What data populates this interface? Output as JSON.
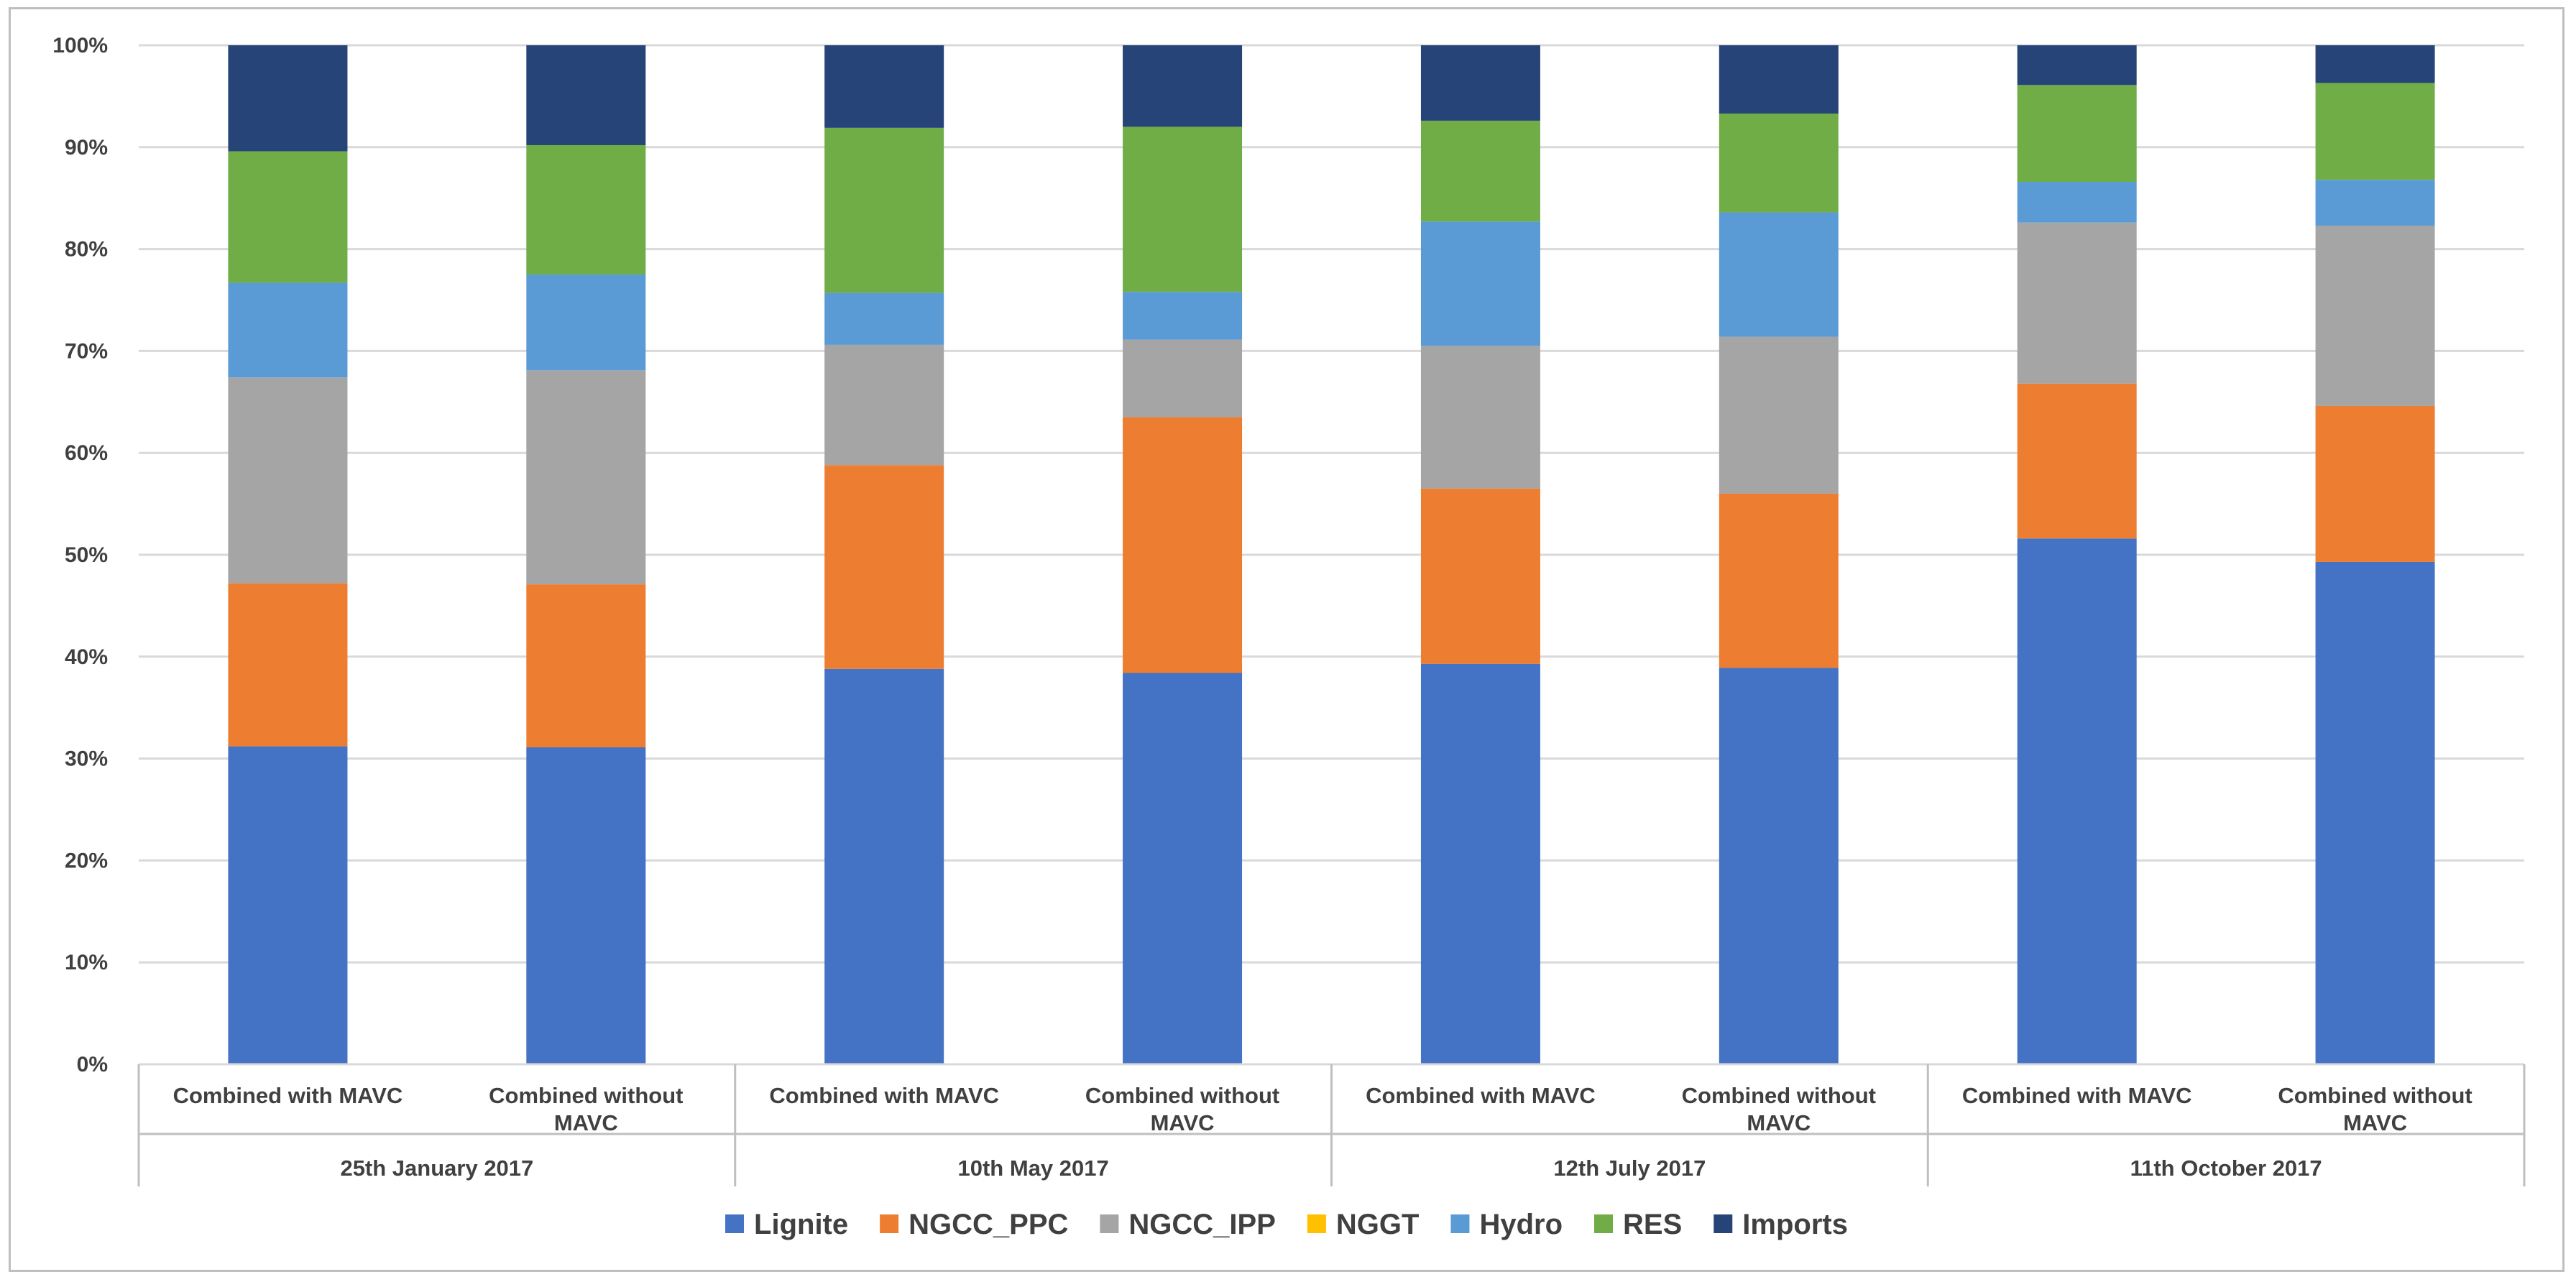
{
  "chart_data": {
    "type": "bar",
    "stacked": true,
    "normalized": true,
    "title": "",
    "xlabel": "",
    "ylabel": "",
    "ylim": [
      0,
      100
    ],
    "y_ticks": [
      "0%",
      "10%",
      "20%",
      "30%",
      "40%",
      "50%",
      "60%",
      "70%",
      "80%",
      "90%",
      "100%"
    ],
    "grid": true,
    "legend_position": "bottom",
    "groups": [
      {
        "label": "25th January 2017"
      },
      {
        "label": "10th May 2017"
      },
      {
        "label": "12th July 2017"
      },
      {
        "label": "11th October 2017"
      }
    ],
    "categories": [
      {
        "label": [
          "Combined with MAVC"
        ],
        "group": 0
      },
      {
        "label": [
          "Combined without",
          "MAVC"
        ],
        "group": 0
      },
      {
        "label": [
          "Combined with MAVC"
        ],
        "group": 1
      },
      {
        "label": [
          "Combined without",
          "MAVC"
        ],
        "group": 1
      },
      {
        "label": [
          "Combined with MAVC"
        ],
        "group": 2
      },
      {
        "label": [
          "Combined without",
          "MAVC"
        ],
        "group": 2
      },
      {
        "label": [
          "Combined with MAVC"
        ],
        "group": 3
      },
      {
        "label": [
          "Combined without",
          "MAVC"
        ],
        "group": 3
      }
    ],
    "series": [
      {
        "name": "Lignite",
        "color": "#4472c4",
        "values": [
          31.2,
          31.1,
          38.8,
          38.4,
          39.3,
          38.9,
          51.6,
          49.3
        ]
      },
      {
        "name": "NGCC_PPC",
        "color": "#ed7d31",
        "values": [
          16.0,
          16.0,
          20.0,
          25.1,
          17.2,
          17.1,
          15.2,
          15.3
        ]
      },
      {
        "name": "NGCC_IPP",
        "color": "#a5a5a5",
        "values": [
          20.2,
          21.0,
          11.8,
          7.6,
          14.0,
          15.4,
          15.8,
          17.7
        ]
      },
      {
        "name": "NGGT",
        "color": "#ffc000",
        "values": [
          0,
          0,
          0,
          0,
          0,
          0,
          0,
          0
        ]
      },
      {
        "name": "Hydro",
        "color": "#5b9bd5",
        "values": [
          9.3,
          9.4,
          5.1,
          4.7,
          12.2,
          12.2,
          4.0,
          4.5
        ]
      },
      {
        "name": "RES",
        "color": "#70ad47",
        "values": [
          12.9,
          12.7,
          16.2,
          16.2,
          9.9,
          9.7,
          9.5,
          9.5
        ]
      },
      {
        "name": "Imports",
        "color": "#264478",
        "values": [
          10.4,
          9.8,
          8.1,
          8.0,
          7.4,
          6.7,
          3.9,
          3.7
        ]
      }
    ]
  }
}
